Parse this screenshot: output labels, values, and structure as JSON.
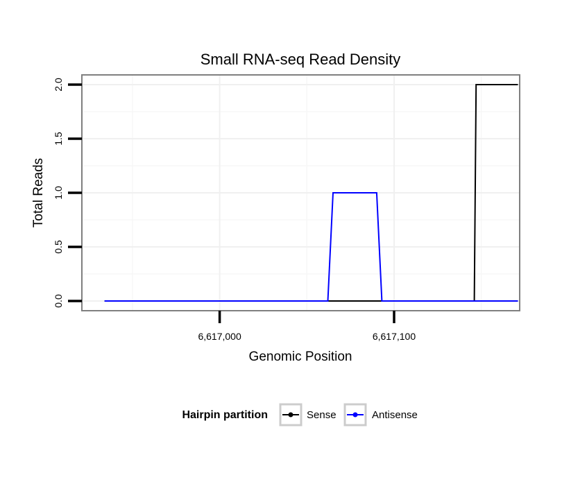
{
  "chart_data": {
    "type": "line",
    "title": "Small RNA-seq Read Density",
    "xlabel": "Genomic Position",
    "ylabel": "Total Reads",
    "xlim": [
      6616921,
      6617172
    ],
    "ylim": [
      -0.09,
      2.09
    ],
    "x_ticks": [
      {
        "value": 6617000,
        "label": "6,617,000"
      },
      {
        "value": 6617100,
        "label": "6,617,100"
      }
    ],
    "y_ticks": [
      {
        "value": 0.0,
        "label": "0.0"
      },
      {
        "value": 0.5,
        "label": "0.5"
      },
      {
        "value": 1.0,
        "label": "1.0"
      },
      {
        "value": 1.5,
        "label": "1.5"
      },
      {
        "value": 2.0,
        "label": "2.0"
      }
    ],
    "x_minor_gridlines": [
      6616950,
      6617050,
      6617150
    ],
    "grid": true,
    "legend": {
      "title": "Hairpin partition",
      "position": "bottom"
    },
    "series": [
      {
        "name": "Sense",
        "color": "#000000",
        "x": [
          6616934,
          6617146,
          6617147,
          6617171
        ],
        "values": [
          0,
          0,
          2,
          2
        ]
      },
      {
        "name": "Antisense",
        "color": "#0000ff",
        "x": [
          6616934,
          6617062,
          6617065,
          6617090,
          6617093,
          6617171
        ],
        "values": [
          0,
          0,
          1,
          1,
          0,
          0
        ]
      }
    ]
  }
}
